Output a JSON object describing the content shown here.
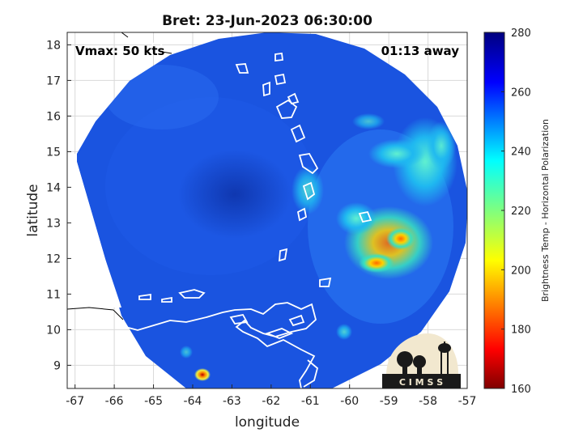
{
  "title": "Bret: 23-Jun-2023 06:30:00",
  "annotations": {
    "vmax": "Vmax: 50 kts",
    "away": "01:13 away"
  },
  "axes": {
    "xlabel": "longitude",
    "ylabel": "latitude",
    "xlim": [
      -67.2,
      -57
    ],
    "ylim": [
      8.35,
      18.35
    ],
    "xticks": [
      -67,
      -66,
      -65,
      -64,
      -63,
      -62,
      -61,
      -60,
      -59,
      -58,
      -57
    ],
    "yticks": [
      9,
      10,
      11,
      12,
      13,
      14,
      15,
      16,
      17,
      18
    ],
    "grid": true
  },
  "colorbar": {
    "label": "Brightness Temp - Horizontal Polarization",
    "range": [
      160,
      280
    ],
    "ticks": [
      160,
      180,
      200,
      220,
      240,
      260,
      280
    ],
    "colormap": "jet"
  },
  "logo": {
    "text": "C I M S S"
  },
  "colors": {
    "background": "#ffffff",
    "coastline": "#ffffff",
    "grid": "#d9d9d9"
  }
}
